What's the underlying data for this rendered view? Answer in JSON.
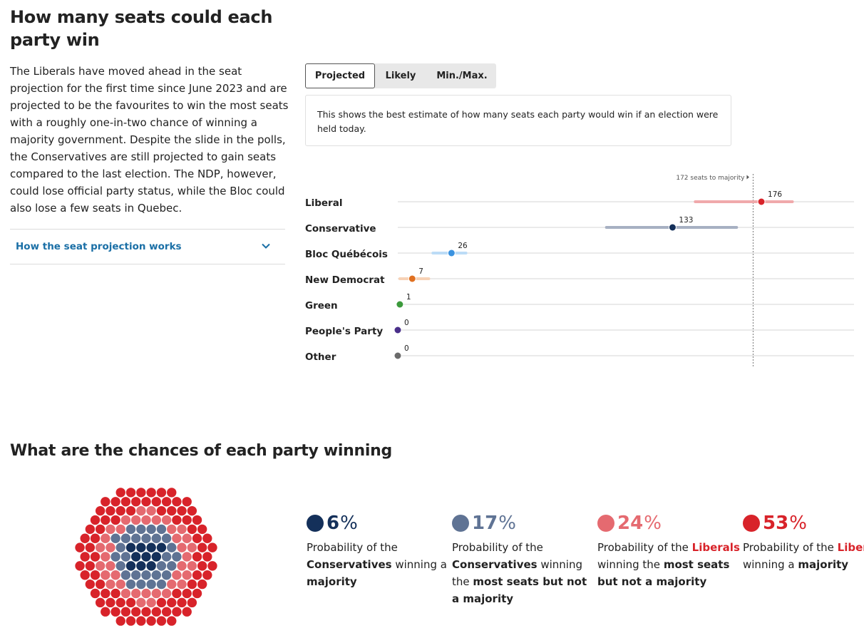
{
  "section1": {
    "title": "How many seats could each party win",
    "intro": "The Liberals have moved ahead in the seat projection for the first time since June 2023 and are projected to be the favourites to win the most seats with a roughly one-in-two chance of winning a majority government. Despite the slide in the polls, the Conservatives are still projected to gain seats compared to the last election. The NDP, however, could lose official party status, while the Bloc could also lose a few seats in Quebec.",
    "accordion_label": "How the seat projection works",
    "accordion_icon": "chevron-down-icon"
  },
  "tabs": [
    {
      "label": "Projected",
      "active": true
    },
    {
      "label": "Likely",
      "active": false
    },
    {
      "label": "Min./Max.",
      "active": false
    }
  ],
  "info_text": "This shows the best estimate of how many seats each party would win if an election were held today.",
  "chart_data": {
    "type": "scatter",
    "title": "",
    "xlabel": "",
    "ylabel": "",
    "xlim": [
      0,
      202
    ],
    "grid": true,
    "majority": {
      "value": 172,
      "label": "172 seats to majority"
    },
    "parties": [
      {
        "name": "Liberal",
        "value": 176,
        "low": 144,
        "high": 191,
        "color": "#d8232a",
        "range_color": "#f0a9ab"
      },
      {
        "name": "Conservative",
        "value": 133,
        "low": 101,
        "high": 164,
        "color": "#14305a",
        "range_color": "#a7b0c2"
      },
      {
        "name": "Bloc Québécois",
        "value": 26,
        "low": 17,
        "high": 33,
        "color": "#3b93e0",
        "range_color": "#bcdcf6"
      },
      {
        "name": "New Democrat",
        "value": 7,
        "low": 1,
        "high": 15,
        "color": "#e07020",
        "range_color": "#f7d2b6"
      },
      {
        "name": "Green",
        "value": 1,
        "low": null,
        "high": null,
        "color": "#3c9a3c",
        "range_color": null
      },
      {
        "name": "People's Party",
        "value": 0,
        "low": null,
        "high": null,
        "color": "#4a2f8a",
        "range_color": null
      },
      {
        "name": "Other",
        "value": 0,
        "low": null,
        "high": null,
        "color": "#6b6b6b",
        "range_color": null
      }
    ]
  },
  "section2": {
    "title": "What are the chances of each party winning",
    "stats": [
      {
        "value": "6",
        "unit": "%",
        "color": "#14305a",
        "parts": [
          [
            "Probability of the ",
            false,
            false
          ],
          [
            "Conservatives",
            true,
            false
          ],
          [
            " winning a ",
            false,
            false
          ],
          [
            "majority",
            true,
            false
          ]
        ]
      },
      {
        "value": "17",
        "unit": "%",
        "color": "#5f7394",
        "parts": [
          [
            "Probability of the ",
            false,
            false
          ],
          [
            "Conservatives",
            true,
            false
          ],
          [
            " winning the ",
            false,
            false
          ],
          [
            "most seats but not a majority",
            true,
            false
          ]
        ]
      },
      {
        "value": "24",
        "unit": "%",
        "color": "#e56a70",
        "parts": [
          [
            "Probability of the ",
            false,
            false
          ],
          [
            "Liberals",
            true,
            true
          ],
          [
            " winning the ",
            false,
            false
          ],
          [
            "most seats but not a majority",
            true,
            false
          ]
        ]
      },
      {
        "value": "53",
        "unit": "%",
        "color": "#d8232a",
        "parts": [
          [
            "Probability of the ",
            false,
            false
          ],
          [
            "Liberals",
            true,
            true
          ],
          [
            " winning a ",
            false,
            false
          ],
          [
            "majority",
            true,
            false
          ]
        ]
      }
    ],
    "waffle_colors": {
      "conservative_majority": "#14305a",
      "conservative_plurality": "#5f7394",
      "liberal_plurality": "#e56a70",
      "liberal_majority": "#d8232a"
    }
  }
}
